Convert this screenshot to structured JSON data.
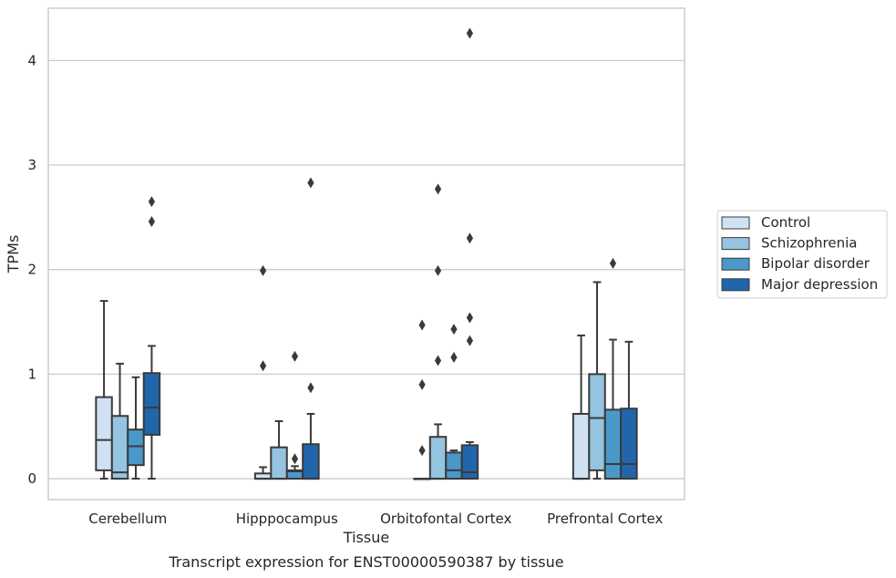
{
  "caption": "Transcript expression for ENST00000590387 by tissue",
  "chart_data": {
    "type": "box",
    "xlabel": "Tissue",
    "ylabel": "TPMs",
    "ylim": [
      -0.2,
      4.5
    ],
    "yticks": [
      0,
      1,
      2,
      3,
      4
    ],
    "grid": "horizontal",
    "legend_position": "right",
    "categories": [
      "Cerebellum",
      "Hipppocampus",
      "Orbitofontal Cortex",
      "Prefrontal Cortex"
    ],
    "series": [
      {
        "name": "Control",
        "color": "#d0e1f2",
        "boxes": [
          {
            "whislo": 0.0,
            "q1": 0.08,
            "med": 0.37,
            "q3": 0.78,
            "whishi": 1.7,
            "fliers": []
          },
          {
            "whislo": 0.0,
            "q1": 0.0,
            "med": 0.0,
            "q3": 0.05,
            "whishi": 0.11,
            "fliers": [
              1.08,
              1.99
            ]
          },
          {
            "whislo": 0.0,
            "q1": 0.0,
            "med": 0.0,
            "q3": 0.0,
            "whishi": 0.0,
            "fliers": [
              0.27,
              0.9,
              1.47
            ]
          },
          {
            "whislo": 0.0,
            "q1": 0.0,
            "med": 0.0,
            "q3": 0.62,
            "whishi": 1.37,
            "fliers": []
          }
        ]
      },
      {
        "name": "Schizophrenia",
        "color": "#94c4df",
        "boxes": [
          {
            "whislo": 0.0,
            "q1": 0.0,
            "med": 0.06,
            "q3": 0.6,
            "whishi": 1.1,
            "fliers": []
          },
          {
            "whislo": 0.0,
            "q1": 0.0,
            "med": 0.0,
            "q3": 0.3,
            "whishi": 0.55,
            "fliers": []
          },
          {
            "whislo": 0.0,
            "q1": 0.0,
            "med": 0.0,
            "q3": 0.4,
            "whishi": 0.52,
            "fliers": [
              1.13,
              1.99,
              2.77
            ]
          },
          {
            "whislo": 0.0,
            "q1": 0.08,
            "med": 0.58,
            "q3": 1.0,
            "whishi": 1.88,
            "fliers": []
          }
        ]
      },
      {
        "name": "Bipolar disorder",
        "color": "#4a98c9",
        "boxes": [
          {
            "whislo": 0.0,
            "q1": 0.13,
            "med": 0.31,
            "q3": 0.47,
            "whishi": 0.97,
            "fliers": []
          },
          {
            "whislo": 0.0,
            "q1": 0.0,
            "med": 0.07,
            "q3": 0.08,
            "whishi": 0.12,
            "fliers": [
              0.19,
              1.17
            ]
          },
          {
            "whislo": 0.0,
            "q1": 0.0,
            "med": 0.08,
            "q3": 0.25,
            "whishi": 0.27,
            "fliers": [
              1.16,
              1.43
            ]
          },
          {
            "whislo": 0.0,
            "q1": 0.0,
            "med": 0.14,
            "q3": 0.66,
            "whishi": 1.33,
            "fliers": [
              2.06
            ]
          }
        ]
      },
      {
        "name": "Major depression",
        "color": "#2166ac",
        "boxes": [
          {
            "whislo": 0.0,
            "q1": 0.42,
            "med": 0.68,
            "q3": 1.01,
            "whishi": 1.27,
            "fliers": [
              2.46,
              2.65
            ]
          },
          {
            "whislo": 0.0,
            "q1": 0.0,
            "med": 0.0,
            "q3": 0.33,
            "whishi": 0.62,
            "fliers": [
              0.87,
              2.83
            ]
          },
          {
            "whislo": 0.0,
            "q1": 0.0,
            "med": 0.06,
            "q3": 0.32,
            "whishi": 0.35,
            "fliers": [
              1.32,
              1.54,
              2.3,
              4.26
            ]
          },
          {
            "whislo": 0.0,
            "q1": 0.0,
            "med": 0.14,
            "q3": 0.67,
            "whishi": 1.31,
            "fliers": []
          }
        ]
      }
    ]
  }
}
